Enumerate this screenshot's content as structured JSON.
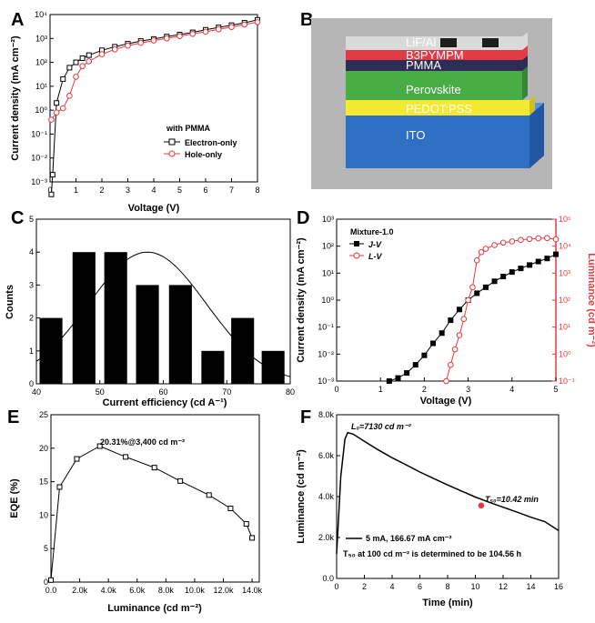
{
  "panels": {
    "A": "A",
    "B": "B",
    "C": "C",
    "D": "D",
    "E": "E",
    "F": "F"
  },
  "chart_data": [
    {
      "panel": "A",
      "type": "line",
      "xlabel": "Voltage (V)",
      "ylabel": "Current density (mA cm⁻²)",
      "xlim": [
        0,
        8
      ],
      "ylim": [
        1e-05,
        10000
      ],
      "yscale": "log",
      "xticks": [
        "0",
        "1",
        "2",
        "3",
        "4",
        "5",
        "6",
        "7",
        "8"
      ],
      "yticks": [
        "10⁻³",
        "10⁻²",
        "10⁻¹",
        "10⁰",
        "10¹",
        "10²",
        "10³",
        "10⁴"
      ],
      "legend_title": "with PMMA",
      "legend_position": "bottom-right",
      "series": [
        {
          "name": "Electron-only",
          "color": "#000000",
          "marker": "square",
          "x": [
            0.05,
            0.1,
            0.25,
            0.5,
            0.75,
            1.0,
            1.25,
            1.5,
            2.0,
            2.5,
            3.0,
            3.5,
            4.0,
            4.5,
            5.0,
            5.5,
            6.0,
            6.5,
            7.0,
            7.5,
            8.0
          ],
          "y": [
            0.0003,
            0.002,
            2,
            20,
            60,
            100,
            150,
            200,
            320,
            450,
            600,
            780,
            950,
            1200,
            1450,
            1800,
            2300,
            2900,
            3600,
            4500,
            6000
          ]
        },
        {
          "name": "Hole-only",
          "color": "#e8383d",
          "marker": "circle",
          "x": [
            0.05,
            0.25,
            0.5,
            0.75,
            1.0,
            1.25,
            1.5,
            2.0,
            2.5,
            3.0,
            3.5,
            4.0,
            4.5,
            5.0,
            5.5,
            6.0,
            6.5,
            7.0,
            7.5,
            8.0
          ],
          "y": [
            0.4,
            0.8,
            1.2,
            4,
            25,
            70,
            110,
            220,
            350,
            500,
            650,
            820,
            1000,
            1250,
            1550,
            1900,
            2400,
            3000,
            3800,
            4800
          ]
        }
      ]
    },
    {
      "panel": "B",
      "type": "diagram",
      "layers": [
        {
          "label": "LiF/Al",
          "color": "#dadada"
        },
        {
          "label": "B3PYMPM",
          "color": "#e23a46"
        },
        {
          "label": "PMMA",
          "color": "#2d2d55"
        },
        {
          "label": "Perovskite",
          "color": "#49ad46"
        },
        {
          "label": "PEDOT:PSS",
          "color": "#f5e830"
        },
        {
          "label": "ITO",
          "color": "#2f6fc4"
        }
      ]
    },
    {
      "panel": "C",
      "type": "bar",
      "xlabel": "Current efficiency (cd A⁻¹)",
      "ylabel": "Counts",
      "xlim": [
        40,
        80
      ],
      "ylim": [
        0,
        5
      ],
      "xticks": [
        "40",
        "50",
        "60",
        "70",
        "80"
      ],
      "yticks": [
        "0",
        "1",
        "2",
        "3",
        "4",
        "5"
      ],
      "bin_width": 3.6,
      "bins": [
        42.3,
        47.5,
        52.5,
        57.5,
        62.7,
        67.8,
        72.5,
        77.3
      ],
      "values": [
        2,
        4,
        4,
        3,
        3,
        1,
        2,
        1
      ],
      "fit": {
        "type": "gaussian",
        "center": 57.5,
        "amplitude": 4.0,
        "sigma": 9.3
      }
    },
    {
      "panel": "D",
      "type": "line",
      "xlabel": "Voltage (V)",
      "ylabel": "Current density (mA cm⁻²)",
      "y2label": "Luminance (cd m⁻²)",
      "xlim": [
        0,
        5
      ],
      "ylim": [
        0.001,
        1000
      ],
      "y2lim": [
        0.1,
        100000
      ],
      "yscale": "log",
      "xticks": [
        "0",
        "1",
        "2",
        "3",
        "4",
        "5"
      ],
      "yticks": [
        "10⁻³",
        "10⁻²",
        "10⁻¹",
        "10⁰",
        "10¹",
        "10²",
        "10³"
      ],
      "y2ticks": [
        "10⁻¹",
        "10⁰",
        "10¹",
        "10²",
        "10³",
        "10⁴",
        "10⁵"
      ],
      "legend_title": "Mixture-1.0",
      "legend_position": "top-left",
      "series": [
        {
          "name": "J-V",
          "color": "#000000",
          "marker": "square",
          "axis": "left",
          "x": [
            1.2,
            1.4,
            1.6,
            1.8,
            2.0,
            2.2,
            2.4,
            2.6,
            2.8,
            3.0,
            3.2,
            3.4,
            3.6,
            3.8,
            4.0,
            4.2,
            4.4,
            4.6,
            4.8,
            5.0
          ],
          "y": [
            0.001,
            0.0013,
            0.002,
            0.004,
            0.009,
            0.025,
            0.06,
            0.18,
            0.45,
            1.0,
            1.8,
            3.0,
            5.0,
            7.5,
            11,
            15,
            20,
            27,
            35,
            50
          ]
        },
        {
          "name": "L-V",
          "color": "#e8383d",
          "marker": "circle",
          "axis": "right",
          "x": [
            2.5,
            2.6,
            2.7,
            2.8,
            2.9,
            3.0,
            3.1,
            3.2,
            3.3,
            3.4,
            3.6,
            3.8,
            4.0,
            4.2,
            4.4,
            4.6,
            4.8,
            5.0
          ],
          "y": [
            0.1,
            0.4,
            1.5,
            5,
            20,
            100,
            300,
            3000,
            6000,
            8000,
            11000,
            13500,
            15000,
            17000,
            18500,
            19500,
            20000,
            18000
          ]
        }
      ]
    },
    {
      "panel": "E",
      "type": "line",
      "xlabel": "Luminance (cd m⁻²)",
      "ylabel": "EQE (%)",
      "xlim": [
        0,
        14500
      ],
      "ylim": [
        0,
        25
      ],
      "xticks": [
        "0.0",
        "2.0k",
        "4.0k",
        "6.0k",
        "8.0k",
        "10.0k",
        "12.0k",
        "14.0k"
      ],
      "yticks": [
        "0",
        "5",
        "10",
        "15",
        "20",
        "25"
      ],
      "annotation": "20.31%@3,400 cd m⁻²",
      "series": [
        {
          "name": "EQE",
          "color": "#000000",
          "marker": "square",
          "x": [
            0,
            600,
            1800,
            3400,
            5200,
            7200,
            9000,
            11000,
            12500,
            13600,
            14000
          ],
          "y": [
            0.3,
            14.2,
            18.4,
            20.31,
            18.7,
            17.1,
            15.1,
            13.0,
            11.0,
            8.7,
            6.6
          ]
        }
      ]
    },
    {
      "panel": "F",
      "type": "line",
      "xlabel": "Time (min)",
      "ylabel": "Luminance (cd m⁻²)",
      "xlim": [
        0,
        16
      ],
      "ylim": [
        0,
        8000
      ],
      "xticks": [
        "0",
        "2",
        "4",
        "6",
        "8",
        "10",
        "12",
        "14",
        "16"
      ],
      "yticks": [
        "0.0",
        "2.0k",
        "4.0k",
        "6.0k",
        "8.0k"
      ],
      "annotations": [
        "L₀=7130 cd m⁻²",
        "T₅₀=10.42 min"
      ],
      "legend": "5 mA, 166.67 mA cm⁻²",
      "note": "T₅₀ at 100 cd m⁻² is determined to be 104.56 h",
      "series": [
        {
          "name": "5 mA, 166.67 mA cm⁻²",
          "color": "#000000",
          "x": [
            0,
            0.3,
            0.6,
            0.8,
            1.2,
            2,
            3,
            4,
            5,
            6,
            7,
            8,
            9,
            10,
            10.42,
            11,
            12,
            13,
            14,
            15,
            16
          ],
          "y": [
            1200,
            5000,
            6800,
            7130,
            7050,
            6700,
            6280,
            5900,
            5550,
            5200,
            4880,
            4570,
            4270,
            3980,
            3565,
            3720,
            3480,
            3240,
            2990,
            2780,
            2340
          ]
        }
      ]
    }
  ]
}
